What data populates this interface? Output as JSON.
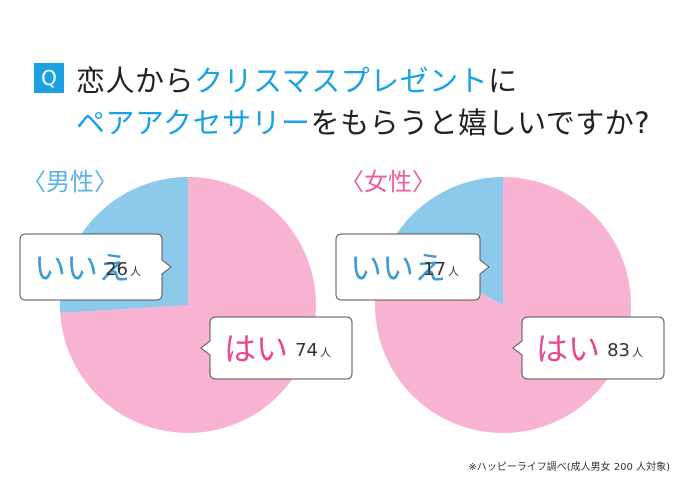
{
  "question": {
    "badge": "Q",
    "line1_pre": "恋人から",
    "line1_hl": "クリスマスプレゼント",
    "line1_post": "に",
    "line2_hl": "ペアアクセサリー",
    "line2_post": "をもらうと嬉しいですか?"
  },
  "colors": {
    "yes": "#f7b3d1",
    "no": "#8cc9ea",
    "accent": "#1aa3e0",
    "yes_text": "#e8488f",
    "no_text": "#3e9ad6",
    "male_label": "#5bb3e3",
    "female_label": "#ec5ea0"
  },
  "chart_data": [
    {
      "type": "pie",
      "title": "〈男性〉",
      "categories": [
        "はい",
        "いいえ"
      ],
      "values": [
        74,
        26
      ],
      "unit": "人"
    },
    {
      "type": "pie",
      "title": "〈女性〉",
      "categories": [
        "はい",
        "いいえ"
      ],
      "values": [
        83,
        17
      ],
      "unit": "人"
    }
  ],
  "footnote": "※ハッピーライフ調べ(成人男女 200 人対象)"
}
